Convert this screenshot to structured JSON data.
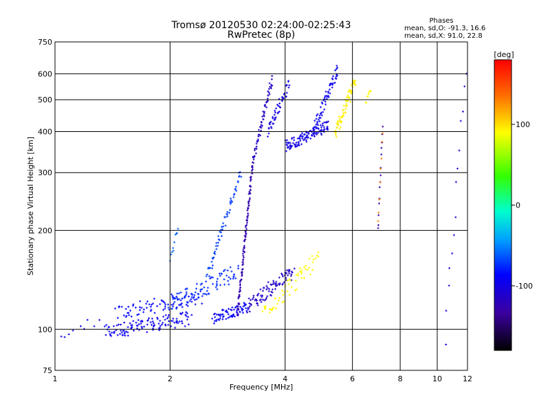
{
  "chart_data": {
    "type": "scatter",
    "title": "Tromsø 20120530 02:24:00-02:25:43",
    "subtitle": "RwPretec (8p)",
    "xlabel": "Frequency [MHz]",
    "ylabel": "Stationary phase Virtual Height [km]",
    "x_scale": "log",
    "y_scale": "log",
    "xlim": [
      1,
      12
    ],
    "ylim": [
      75,
      750
    ],
    "x_ticks": [
      1,
      2,
      4,
      6,
      8,
      10,
      12
    ],
    "x_tick_labels": [
      "1",
      "2",
      "4",
      "6",
      "8",
      "10",
      "12"
    ],
    "y_ticks": [
      75,
      100,
      200,
      300,
      400,
      500,
      600,
      750
    ],
    "y_tick_labels": [
      "75",
      "100",
      "200",
      "300",
      "400",
      "500",
      "600",
      "750"
    ],
    "grid": true,
    "stats": {
      "heading": "Phases",
      "line_o": "mean, sd,O: -91.3, 16.6",
      "line_x": "mean, sd,X:  91.0, 22.8"
    },
    "colorbar": {
      "label": "[deg]",
      "range": [
        -180,
        180
      ],
      "ticks": [
        100,
        0,
        -100
      ],
      "tick_labels": [
        "100",
        "0",
        "-100"
      ]
    },
    "traces": [
      {
        "phase": -95,
        "x0": 1.35,
        "x1": 2.25,
        "y0": 98,
        "y1": 108,
        "n": 120,
        "spread": 0.05
      },
      {
        "phase": -85,
        "x0": 1.45,
        "x1": 2.4,
        "y0": 112,
        "y1": 125,
        "n": 80,
        "spread": 0.05
      },
      {
        "phase": -75,
        "x0": 2.0,
        "x1": 3.0,
        "y0": 120,
        "y1": 150,
        "n": 90,
        "spread": 0.06
      },
      {
        "phase": -70,
        "x0": 2.5,
        "x1": 3.05,
        "y0": 145,
        "y1": 300,
        "n": 60,
        "spread": 0.03
      },
      {
        "phase": -90,
        "x0": 2.6,
        "x1": 3.2,
        "y0": 108,
        "y1": 118,
        "n": 70,
        "spread": 0.04
      },
      {
        "phase": -125,
        "x0": 3.0,
        "x1": 3.3,
        "y0": 110,
        "y1": 330,
        "n": 120,
        "spread": 0.02
      },
      {
        "phase": -115,
        "x0": 3.3,
        "x1": 3.7,
        "y0": 330,
        "y1": 580,
        "n": 60,
        "spread": 0.03
      },
      {
        "phase": -100,
        "x0": 3.6,
        "x1": 4.1,
        "y0": 400,
        "y1": 560,
        "n": 50,
        "spread": 0.04
      },
      {
        "phase": -100,
        "x0": 4.0,
        "x1": 5.2,
        "y0": 360,
        "y1": 420,
        "n": 120,
        "spread": 0.04
      },
      {
        "phase": -95,
        "x0": 4.8,
        "x1": 5.5,
        "y0": 420,
        "y1": 620,
        "n": 60,
        "spread": 0.04
      },
      {
        "phase": -115,
        "x0": 3.2,
        "x1": 4.2,
        "y0": 118,
        "y1": 150,
        "n": 90,
        "spread": 0.05
      },
      {
        "phase": 95,
        "x0": 5.4,
        "x1": 6.1,
        "y0": 390,
        "y1": 570,
        "n": 70,
        "spread": 0.05
      },
      {
        "phase": 90,
        "x0": 3.5,
        "x1": 4.9,
        "y0": 112,
        "y1": 165,
        "n": 60,
        "spread": 0.06
      },
      {
        "phase": 90,
        "x0": 6.5,
        "x1": 6.7,
        "y0": 480,
        "y1": 540,
        "n": 8,
        "spread": 0.03
      },
      {
        "phase": -60,
        "x0": 2.0,
        "x1": 2.1,
        "y0": 160,
        "y1": 205,
        "n": 10,
        "spread": 0.03
      },
      {
        "phase": -130,
        "x0": 7.0,
        "x1": 7.2,
        "y0": 200,
        "y1": 420,
        "n": 14,
        "spread": 0.02
      },
      {
        "phase": 130,
        "x0": 7.0,
        "x1": 7.2,
        "y0": 210,
        "y1": 400,
        "n": 8,
        "spread": 0.02
      },
      {
        "phase": -95,
        "x0": 1.0,
        "x1": 1.3,
        "y0": 90,
        "y1": 108,
        "n": 10,
        "spread": 0.04
      },
      {
        "phase": -105,
        "x0": 10.5,
        "x1": 11.9,
        "y0": 95,
        "y1": 620,
        "n": 14,
        "spread": 0.08
      }
    ]
  }
}
